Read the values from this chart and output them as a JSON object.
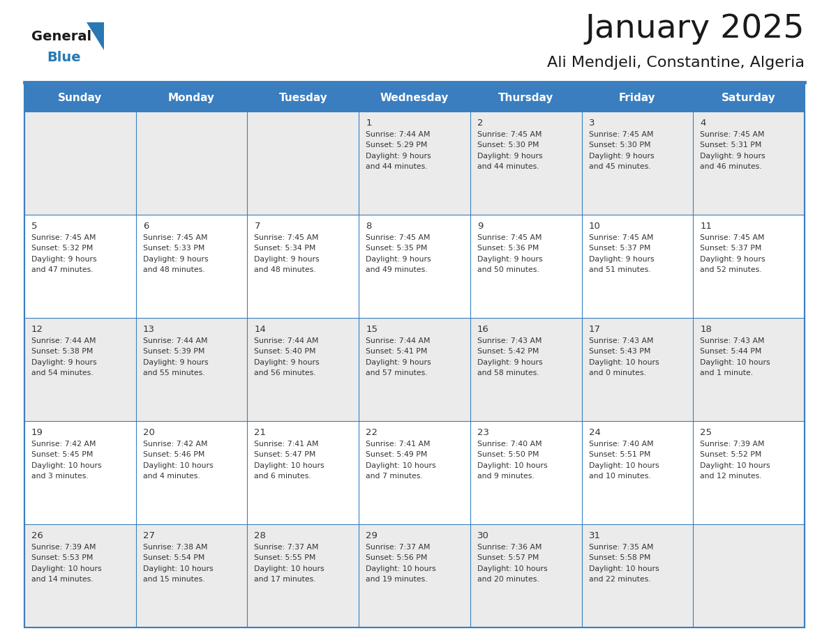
{
  "title": "January 2025",
  "subtitle": "Ali Mendjeli, Constantine, Algeria",
  "days_of_week": [
    "Sunday",
    "Monday",
    "Tuesday",
    "Wednesday",
    "Thursday",
    "Friday",
    "Saturday"
  ],
  "header_bg": "#3a7ebf",
  "header_text": "#ffffff",
  "row_bg_odd": "#ebebeb",
  "row_bg_even": "#ffffff",
  "cell_border": "#3a7ebf",
  "title_color": "#1a1a1a",
  "subtitle_color": "#1a1a1a",
  "day_text_color": "#333333",
  "logo_general_color": "#1a1a1a",
  "logo_blue_color": "#2878b4",
  "figsize": [
    11.88,
    9.18
  ],
  "dpi": 100,
  "weeks": [
    {
      "bg_index": 1,
      "days": [
        {
          "day": "",
          "sunrise": "",
          "sunset": "",
          "daylight_line1": "",
          "daylight_line2": ""
        },
        {
          "day": "",
          "sunrise": "",
          "sunset": "",
          "daylight_line1": "",
          "daylight_line2": ""
        },
        {
          "day": "",
          "sunrise": "",
          "sunset": "",
          "daylight_line1": "",
          "daylight_line2": ""
        },
        {
          "day": "1",
          "sunrise": "Sunrise: 7:44 AM",
          "sunset": "Sunset: 5:29 PM",
          "daylight_line1": "Daylight: 9 hours",
          "daylight_line2": "and 44 minutes."
        },
        {
          "day": "2",
          "sunrise": "Sunrise: 7:45 AM",
          "sunset": "Sunset: 5:30 PM",
          "daylight_line1": "Daylight: 9 hours",
          "daylight_line2": "and 44 minutes."
        },
        {
          "day": "3",
          "sunrise": "Sunrise: 7:45 AM",
          "sunset": "Sunset: 5:30 PM",
          "daylight_line1": "Daylight: 9 hours",
          "daylight_line2": "and 45 minutes."
        },
        {
          "day": "4",
          "sunrise": "Sunrise: 7:45 AM",
          "sunset": "Sunset: 5:31 PM",
          "daylight_line1": "Daylight: 9 hours",
          "daylight_line2": "and 46 minutes."
        }
      ]
    },
    {
      "bg_index": 2,
      "days": [
        {
          "day": "5",
          "sunrise": "Sunrise: 7:45 AM",
          "sunset": "Sunset: 5:32 PM",
          "daylight_line1": "Daylight: 9 hours",
          "daylight_line2": "and 47 minutes."
        },
        {
          "day": "6",
          "sunrise": "Sunrise: 7:45 AM",
          "sunset": "Sunset: 5:33 PM",
          "daylight_line1": "Daylight: 9 hours",
          "daylight_line2": "and 48 minutes."
        },
        {
          "day": "7",
          "sunrise": "Sunrise: 7:45 AM",
          "sunset": "Sunset: 5:34 PM",
          "daylight_line1": "Daylight: 9 hours",
          "daylight_line2": "and 48 minutes."
        },
        {
          "day": "8",
          "sunrise": "Sunrise: 7:45 AM",
          "sunset": "Sunset: 5:35 PM",
          "daylight_line1": "Daylight: 9 hours",
          "daylight_line2": "and 49 minutes."
        },
        {
          "day": "9",
          "sunrise": "Sunrise: 7:45 AM",
          "sunset": "Sunset: 5:36 PM",
          "daylight_line1": "Daylight: 9 hours",
          "daylight_line2": "and 50 minutes."
        },
        {
          "day": "10",
          "sunrise": "Sunrise: 7:45 AM",
          "sunset": "Sunset: 5:37 PM",
          "daylight_line1": "Daylight: 9 hours",
          "daylight_line2": "and 51 minutes."
        },
        {
          "day": "11",
          "sunrise": "Sunrise: 7:45 AM",
          "sunset": "Sunset: 5:37 PM",
          "daylight_line1": "Daylight: 9 hours",
          "daylight_line2": "and 52 minutes."
        }
      ]
    },
    {
      "bg_index": 1,
      "days": [
        {
          "day": "12",
          "sunrise": "Sunrise: 7:44 AM",
          "sunset": "Sunset: 5:38 PM",
          "daylight_line1": "Daylight: 9 hours",
          "daylight_line2": "and 54 minutes."
        },
        {
          "day": "13",
          "sunrise": "Sunrise: 7:44 AM",
          "sunset": "Sunset: 5:39 PM",
          "daylight_line1": "Daylight: 9 hours",
          "daylight_line2": "and 55 minutes."
        },
        {
          "day": "14",
          "sunrise": "Sunrise: 7:44 AM",
          "sunset": "Sunset: 5:40 PM",
          "daylight_line1": "Daylight: 9 hours",
          "daylight_line2": "and 56 minutes."
        },
        {
          "day": "15",
          "sunrise": "Sunrise: 7:44 AM",
          "sunset": "Sunset: 5:41 PM",
          "daylight_line1": "Daylight: 9 hours",
          "daylight_line2": "and 57 minutes."
        },
        {
          "day": "16",
          "sunrise": "Sunrise: 7:43 AM",
          "sunset": "Sunset: 5:42 PM",
          "daylight_line1": "Daylight: 9 hours",
          "daylight_line2": "and 58 minutes."
        },
        {
          "day": "17",
          "sunrise": "Sunrise: 7:43 AM",
          "sunset": "Sunset: 5:43 PM",
          "daylight_line1": "Daylight: 10 hours",
          "daylight_line2": "and 0 minutes."
        },
        {
          "day": "18",
          "sunrise": "Sunrise: 7:43 AM",
          "sunset": "Sunset: 5:44 PM",
          "daylight_line1": "Daylight: 10 hours",
          "daylight_line2": "and 1 minute."
        }
      ]
    },
    {
      "bg_index": 2,
      "days": [
        {
          "day": "19",
          "sunrise": "Sunrise: 7:42 AM",
          "sunset": "Sunset: 5:45 PM",
          "daylight_line1": "Daylight: 10 hours",
          "daylight_line2": "and 3 minutes."
        },
        {
          "day": "20",
          "sunrise": "Sunrise: 7:42 AM",
          "sunset": "Sunset: 5:46 PM",
          "daylight_line1": "Daylight: 10 hours",
          "daylight_line2": "and 4 minutes."
        },
        {
          "day": "21",
          "sunrise": "Sunrise: 7:41 AM",
          "sunset": "Sunset: 5:47 PM",
          "daylight_line1": "Daylight: 10 hours",
          "daylight_line2": "and 6 minutes."
        },
        {
          "day": "22",
          "sunrise": "Sunrise: 7:41 AM",
          "sunset": "Sunset: 5:49 PM",
          "daylight_line1": "Daylight: 10 hours",
          "daylight_line2": "and 7 minutes."
        },
        {
          "day": "23",
          "sunrise": "Sunrise: 7:40 AM",
          "sunset": "Sunset: 5:50 PM",
          "daylight_line1": "Daylight: 10 hours",
          "daylight_line2": "and 9 minutes."
        },
        {
          "day": "24",
          "sunrise": "Sunrise: 7:40 AM",
          "sunset": "Sunset: 5:51 PM",
          "daylight_line1": "Daylight: 10 hours",
          "daylight_line2": "and 10 minutes."
        },
        {
          "day": "25",
          "sunrise": "Sunrise: 7:39 AM",
          "sunset": "Sunset: 5:52 PM",
          "daylight_line1": "Daylight: 10 hours",
          "daylight_line2": "and 12 minutes."
        }
      ]
    },
    {
      "bg_index": 1,
      "days": [
        {
          "day": "26",
          "sunrise": "Sunrise: 7:39 AM",
          "sunset": "Sunset: 5:53 PM",
          "daylight_line1": "Daylight: 10 hours",
          "daylight_line2": "and 14 minutes."
        },
        {
          "day": "27",
          "sunrise": "Sunrise: 7:38 AM",
          "sunset": "Sunset: 5:54 PM",
          "daylight_line1": "Daylight: 10 hours",
          "daylight_line2": "and 15 minutes."
        },
        {
          "day": "28",
          "sunrise": "Sunrise: 7:37 AM",
          "sunset": "Sunset: 5:55 PM",
          "daylight_line1": "Daylight: 10 hours",
          "daylight_line2": "and 17 minutes."
        },
        {
          "day": "29",
          "sunrise": "Sunrise: 7:37 AM",
          "sunset": "Sunset: 5:56 PM",
          "daylight_line1": "Daylight: 10 hours",
          "daylight_line2": "and 19 minutes."
        },
        {
          "day": "30",
          "sunrise": "Sunrise: 7:36 AM",
          "sunset": "Sunset: 5:57 PM",
          "daylight_line1": "Daylight: 10 hours",
          "daylight_line2": "and 20 minutes."
        },
        {
          "day": "31",
          "sunrise": "Sunrise: 7:35 AM",
          "sunset": "Sunset: 5:58 PM",
          "daylight_line1": "Daylight: 10 hours",
          "daylight_line2": "and 22 minutes."
        },
        {
          "day": "",
          "sunrise": "",
          "sunset": "",
          "daylight_line1": "",
          "daylight_line2": ""
        }
      ]
    }
  ]
}
